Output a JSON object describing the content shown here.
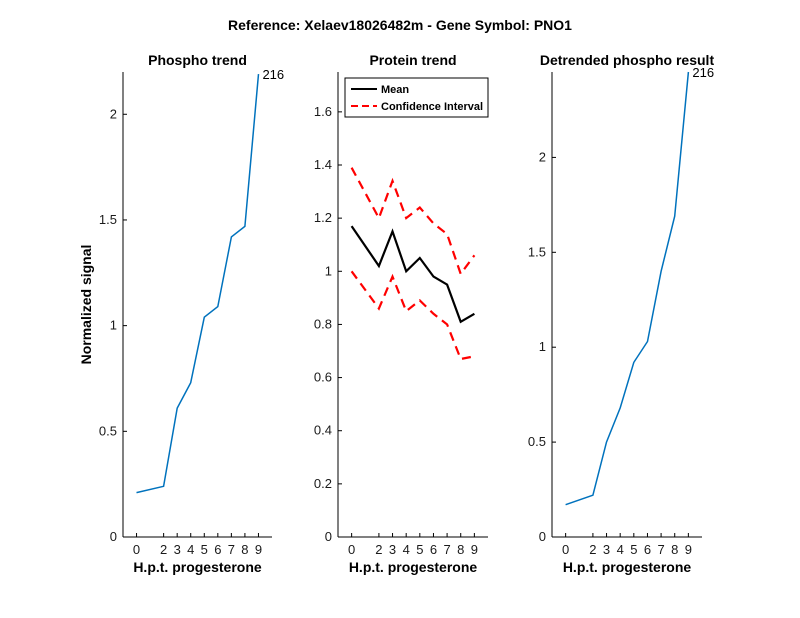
{
  "figure": {
    "suptitle": "Reference:  Xelaev18026482m - Gene Symbol:  PNO1"
  },
  "chart_data": [
    {
      "type": "line",
      "title": "Phospho trend",
      "xlabel": "H.p.t. progesterone",
      "ylabel": "Normalized signal",
      "xlim": [
        -1,
        10
      ],
      "ylim": [
        0,
        2.2
      ],
      "xticks": [
        0,
        2,
        3,
        4,
        5,
        6,
        7,
        8,
        9
      ],
      "xticklabels": [
        "0",
        "2",
        "3",
        "4",
        "5",
        "6",
        "7",
        "8",
        "9"
      ],
      "yticks": [
        0,
        0.5,
        1,
        1.5,
        2
      ],
      "yticklabels": [
        "0",
        "0.5",
        "1",
        "1.5",
        "2"
      ],
      "series": [
        {
          "color": "#0072BD",
          "style": "solid",
          "x": [
            0,
            2,
            3,
            4,
            5,
            6,
            7,
            8,
            9
          ],
          "values": [
            0.21,
            0.24,
            0.61,
            0.73,
            1.04,
            1.09,
            1.42,
            1.47,
            2.19
          ]
        }
      ],
      "annotations": [
        {
          "text": "216",
          "x": 9,
          "y": 2.19
        }
      ]
    },
    {
      "type": "line",
      "title": "Protein trend",
      "xlabel": "H.p.t. progesterone",
      "ylabel": "",
      "xlim": [
        -1,
        10
      ],
      "ylim": [
        0,
        1.75
      ],
      "xticks": [
        0,
        2,
        3,
        4,
        5,
        6,
        7,
        8,
        9
      ],
      "xticklabels": [
        "0",
        "2",
        "3",
        "4",
        "5",
        "6",
        "7",
        "8",
        "9"
      ],
      "yticks": [
        0,
        0.2,
        0.4,
        0.6,
        0.8,
        1,
        1.2,
        1.4,
        1.6
      ],
      "yticklabels": [
        "0",
        "0.2",
        "0.4",
        "0.6",
        "0.8",
        "1",
        "1.2",
        "1.4",
        "1.6"
      ],
      "legend": {
        "position": "top-left",
        "entries": [
          {
            "label": "Mean",
            "color": "#000000",
            "style": "solid"
          },
          {
            "label": "Confidence Interval",
            "color": "#FF0000",
            "style": "dashed"
          }
        ]
      },
      "series": [
        {
          "name": "Mean",
          "color": "#000000",
          "style": "solid",
          "x": [
            0,
            2,
            3,
            4,
            5,
            6,
            7,
            8,
            9
          ],
          "values": [
            1.17,
            1.02,
            1.15,
            1.0,
            1.05,
            0.98,
            0.95,
            0.81,
            0.84
          ]
        },
        {
          "name": "Confidence Interval",
          "color": "#FF0000",
          "style": "dashed",
          "x": [
            0,
            2,
            3,
            4,
            5,
            6,
            7,
            8,
            9
          ],
          "values": [
            1.39,
            1.2,
            1.34,
            1.2,
            1.24,
            1.18,
            1.14,
            0.99,
            1.06
          ]
        },
        {
          "name": "Confidence Interval",
          "color": "#FF0000",
          "style": "dashed",
          "x": [
            0,
            2,
            3,
            4,
            5,
            6,
            7,
            8,
            9
          ],
          "values": [
            1.0,
            0.86,
            0.98,
            0.85,
            0.89,
            0.84,
            0.8,
            0.67,
            0.68
          ]
        }
      ]
    },
    {
      "type": "line",
      "title": "Detrended phospho result",
      "xlabel": "H.p.t. progesterone",
      "ylabel": "",
      "xlim": [
        -1,
        10
      ],
      "ylim": [
        0,
        2.45
      ],
      "xticks": [
        0,
        2,
        3,
        4,
        5,
        6,
        7,
        8,
        9
      ],
      "xticklabels": [
        "0",
        "2",
        "3",
        "4",
        "5",
        "6",
        "7",
        "8",
        "9"
      ],
      "yticks": [
        0,
        0.5,
        1,
        1.5,
        2
      ],
      "yticklabels": [
        "0",
        "0.5",
        "1",
        "1.5",
        "2"
      ],
      "series": [
        {
          "color": "#0072BD",
          "style": "solid",
          "x": [
            0,
            2,
            3,
            4,
            5,
            6,
            7,
            8,
            9
          ],
          "values": [
            0.17,
            0.22,
            0.5,
            0.68,
            0.92,
            1.03,
            1.4,
            1.69,
            2.45
          ]
        }
      ],
      "annotations": [
        {
          "text": "216",
          "x": 9,
          "y": 2.45
        }
      ]
    }
  ]
}
